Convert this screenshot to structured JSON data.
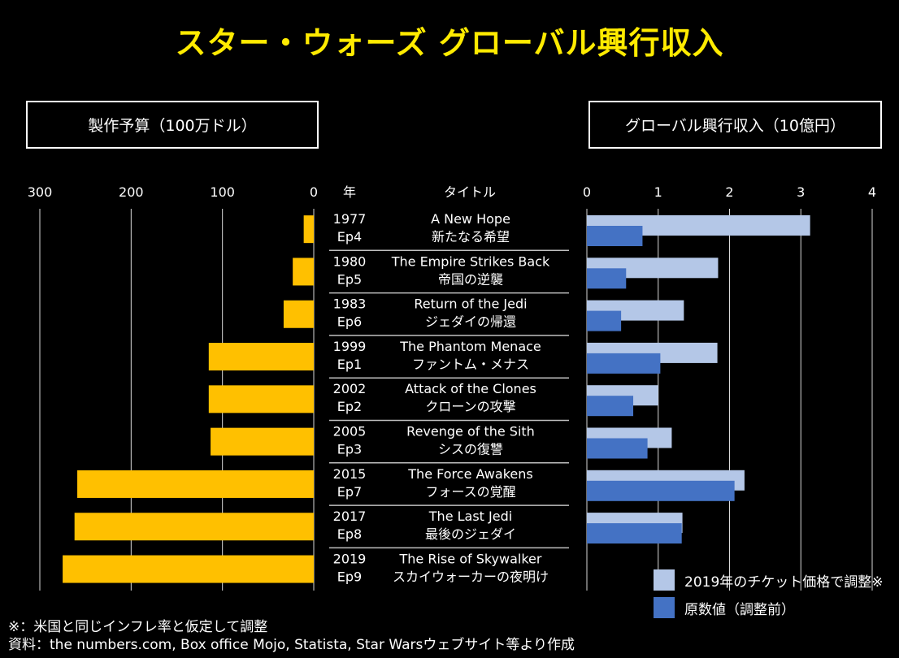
{
  "title": "スター・ウォーズ グローバル興行収入",
  "footnotes": {
    "note": "※：米国と同じインフレ率と仮定して調整",
    "source": "資料：the numbers.com, Box office Mojo, Statista, Star Warsウェブサイト等より作成"
  },
  "chart_data": [
    {
      "type": "bar",
      "orientation": "horizontal",
      "direction": "right-to-left",
      "panel_title": "製作予算（100万ドル）",
      "xlim": [
        0,
        300
      ],
      "ticks": [
        "300",
        "200",
        "100",
        "0"
      ],
      "tick_values": [
        300,
        200,
        100,
        0
      ],
      "categories": [
        "Ep4",
        "Ep5",
        "Ep6",
        "Ep1",
        "Ep2",
        "Ep3",
        "Ep7",
        "Ep8",
        "Ep9"
      ],
      "values": [
        11,
        23,
        33,
        115,
        115,
        113,
        259,
        262,
        275
      ],
      "color": "#ffc000"
    },
    {
      "type": "bar",
      "orientation": "horizontal",
      "panel_title": "グローバル興行収入（10億円）",
      "xlim": [
        0,
        4
      ],
      "ticks": [
        "0",
        "1",
        "2",
        "3",
        "4"
      ],
      "tick_values": [
        0,
        1,
        2,
        3,
        4
      ],
      "categories": [
        "Ep4",
        "Ep5",
        "Ep6",
        "Ep1",
        "Ep2",
        "Ep3",
        "Ep7",
        "Ep8",
        "Ep9"
      ],
      "series": [
        {
          "name": "2019年のチケット価格で調整※",
          "color": "#b4c7e7",
          "values": [
            3.13,
            1.84,
            1.36,
            1.83,
            1.0,
            1.19,
            2.21,
            1.34,
            null
          ]
        },
        {
          "name": "原数値（調整前）",
          "color": "#4472c4",
          "values": [
            0.78,
            0.55,
            0.48,
            1.03,
            0.65,
            0.85,
            2.07,
            1.33,
            null
          ]
        }
      ],
      "legend_position": "bottom-right"
    }
  ],
  "table": {
    "headers": {
      "year": "年",
      "title": "タイトル"
    },
    "rows": [
      {
        "year": "1977",
        "ep": "Ep4",
        "title_en": "A New Hope",
        "title_jp": "新たなる希望"
      },
      {
        "year": "1980",
        "ep": "Ep5",
        "title_en": "The Empire Strikes Back",
        "title_jp": "帝国の逆襲"
      },
      {
        "year": "1983",
        "ep": "Ep6",
        "title_en": "Return of the Jedi",
        "title_jp": "ジェダイの帰還"
      },
      {
        "year": "1999",
        "ep": "Ep1",
        "title_en": "The Phantom Menace",
        "title_jp": "ファントム・メナス"
      },
      {
        "year": "2002",
        "ep": "Ep2",
        "title_en": "Attack of the Clones",
        "title_jp": "クローンの攻撃"
      },
      {
        "year": "2005",
        "ep": "Ep3",
        "title_en": "Revenge of the Sith",
        "title_jp": "シスの復讐"
      },
      {
        "year": "2015",
        "ep": "Ep7",
        "title_en": "The Force Awakens",
        "title_jp": "フォースの覚醒"
      },
      {
        "year": "2017",
        "ep": "Ep8",
        "title_en": "The Last Jedi",
        "title_jp": "最後のジェダイ"
      },
      {
        "year": "2019",
        "ep": "Ep9",
        "title_en": "The Rise of Skywalker",
        "title_jp": "スカイウォーカーの夜明け"
      }
    ]
  }
}
